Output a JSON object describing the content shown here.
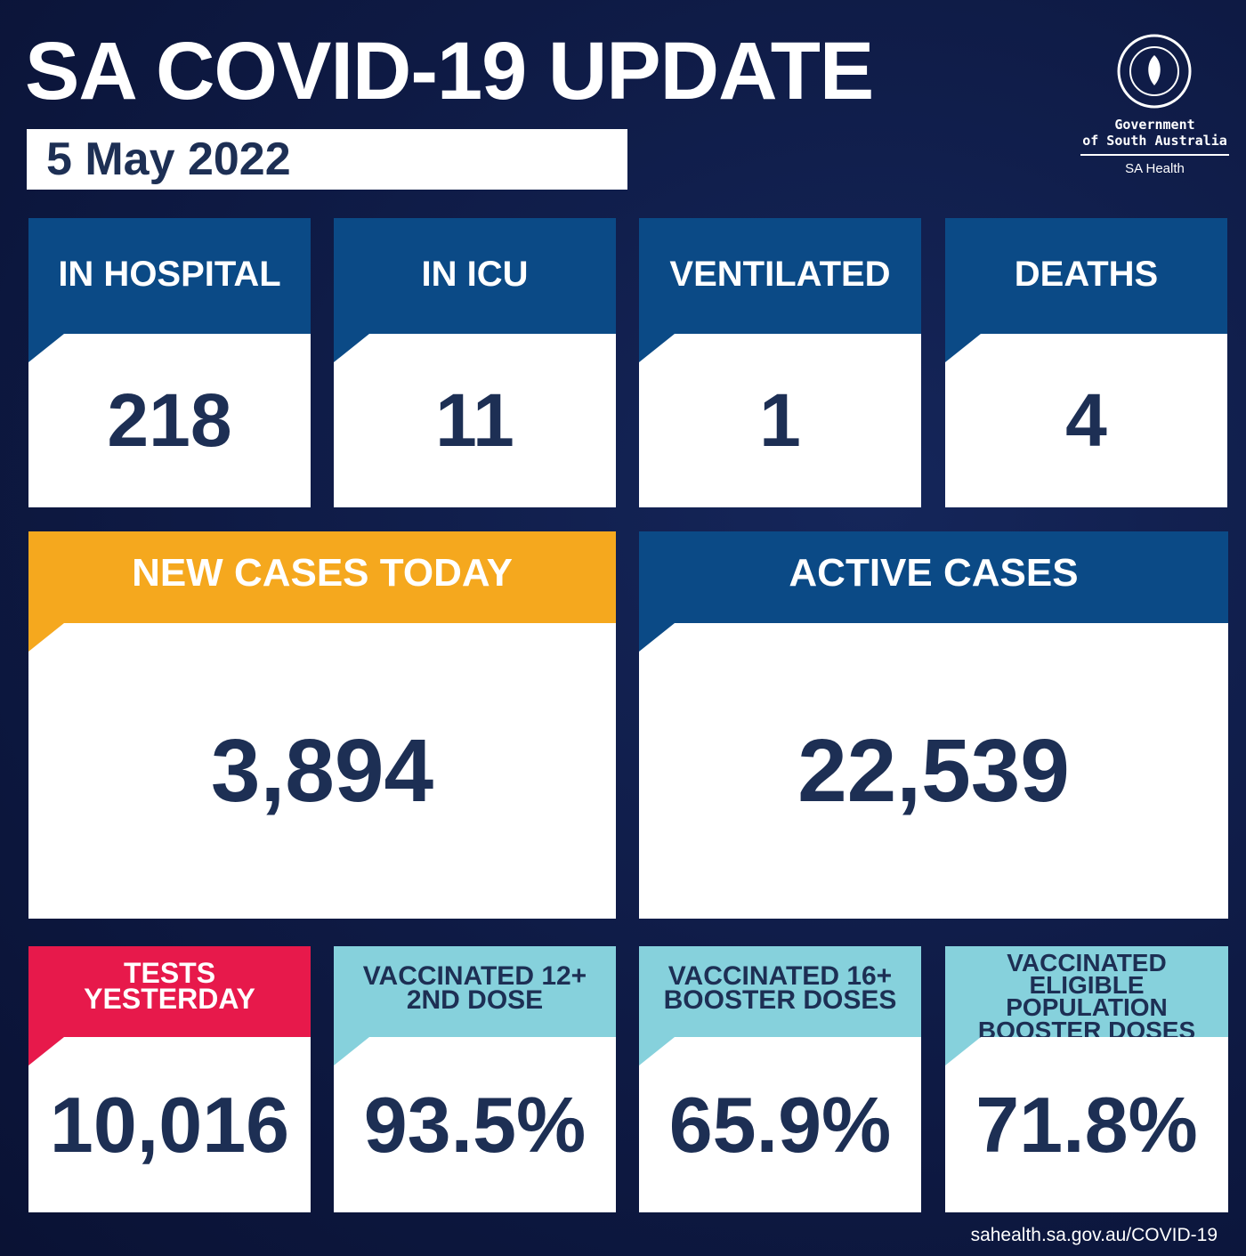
{
  "header": {
    "title": "SA COVID-19 UPDATE",
    "date": "5 May 2022"
  },
  "logo": {
    "org": [
      "Government",
      "of South Australia"
    ],
    "dept": "SA Health"
  },
  "cards": [
    {
      "label": [
        "IN HOSPITAL"
      ],
      "value": "218"
    },
    {
      "label": [
        "IN ICU"
      ],
      "value": "11"
    },
    {
      "label": [
        "VENTILATED"
      ],
      "value": "1"
    },
    {
      "label": [
        "DEATHS"
      ],
      "value": "4"
    },
    {
      "label": [
        "NEW CASES TODAY"
      ],
      "value": "3,894"
    },
    {
      "label": [
        "ACTIVE CASES"
      ],
      "value": "22,539"
    },
    {
      "label": [
        "TESTS",
        "YESTERDAY"
      ],
      "value": "10,016"
    },
    {
      "label": [
        "VACCINATED 12+",
        "2ND DOSE"
      ],
      "value": "93.5%"
    },
    {
      "label": [
        "VACCINATED 16+",
        "BOOSTER DOSES"
      ],
      "value": "65.9%"
    },
    {
      "label": [
        "VACCINATED",
        "ELIGIBLE POPULATION",
        "BOOSTER DOSES"
      ],
      "value": "71.8%"
    }
  ],
  "footer": "sahealth.sa.gov.au/COVID-19"
}
